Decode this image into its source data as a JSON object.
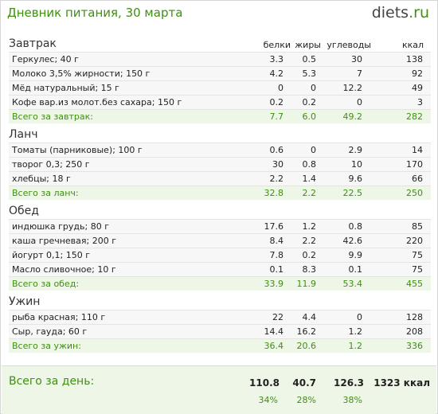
{
  "header": {
    "title": "Дневник питания, 30 марта",
    "logo_main": "diets",
    "logo_tld": ".ru"
  },
  "columns": {
    "protein": "белки",
    "fat": "жиры",
    "carbs": "углеводы",
    "kcal": "ккал"
  },
  "meals": [
    {
      "name": "Завтрак",
      "items": [
        {
          "name": "Геркулес; 40 г",
          "protein": "3.3",
          "fat": "0.5",
          "carbs": "30",
          "kcal": "138"
        },
        {
          "name": "Молоко 3,5% жирности; 150 г",
          "protein": "4.2",
          "fat": "5.3",
          "carbs": "7",
          "kcal": "92"
        },
        {
          "name": "Мёд натуральный; 15 г",
          "protein": "0",
          "fat": "0",
          "carbs": "12.2",
          "kcal": "49"
        },
        {
          "name": "Кофе вар.из молот.без сахара; 150 г",
          "protein": "0.2",
          "fat": "0.2",
          "carbs": "0",
          "kcal": "3"
        }
      ],
      "total": {
        "name": "Всего за завтрак:",
        "protein": "7.7",
        "fat": "6.0",
        "carbs": "49.2",
        "kcal": "282"
      }
    },
    {
      "name": "Ланч",
      "items": [
        {
          "name": "Томаты (парниковые); 100 г",
          "protein": "0.6",
          "fat": "0",
          "carbs": "2.9",
          "kcal": "14"
        },
        {
          "name": "творог 0,3; 250 г",
          "protein": "30",
          "fat": "0.8",
          "carbs": "10",
          "kcal": "170"
        },
        {
          "name": "хлебцы; 18 г",
          "protein": "2.2",
          "fat": "1.4",
          "carbs": "9.6",
          "kcal": "66"
        }
      ],
      "total": {
        "name": "Всего за ланч:",
        "protein": "32.8",
        "fat": "2.2",
        "carbs": "22.5",
        "kcal": "250"
      }
    },
    {
      "name": "Обед",
      "items": [
        {
          "name": "индюшка грудь; 80 г",
          "protein": "17.6",
          "fat": "1.2",
          "carbs": "0.8",
          "kcal": "85"
        },
        {
          "name": "каша гречневая; 200 г",
          "protein": "8.4",
          "fat": "2.2",
          "carbs": "42.6",
          "kcal": "220"
        },
        {
          "name": "йогурт 0,1; 150 г",
          "protein": "7.8",
          "fat": "0.2",
          "carbs": "9.9",
          "kcal": "75"
        },
        {
          "name": "Масло сливочное; 10 г",
          "protein": "0.1",
          "fat": "8.3",
          "carbs": "0.1",
          "kcal": "75"
        }
      ],
      "total": {
        "name": "Всего за обед:",
        "protein": "33.9",
        "fat": "11.9",
        "carbs": "53.4",
        "kcal": "455"
      }
    },
    {
      "name": "Ужин",
      "items": [
        {
          "name": "рыба красная; 110 г",
          "protein": "22",
          "fat": "4.4",
          "carbs": "0",
          "kcal": "128"
        },
        {
          "name": "Сыр, гауда; 60 г",
          "protein": "14.4",
          "fat": "16.2",
          "carbs": "1.2",
          "kcal": "208"
        }
      ],
      "total": {
        "name": "Всего за ужин:",
        "protein": "36.4",
        "fat": "20.6",
        "carbs": "1.2",
        "kcal": "336"
      }
    }
  ],
  "day": {
    "label": "Всего за день:",
    "protein": "110.8",
    "fat": "40.7",
    "carbs": "126.3",
    "kcal": "1323 ккал",
    "protein_pct": "34%",
    "fat_pct": "28%",
    "carbs_pct": "38%"
  },
  "colors": {
    "accent": "#3f8f12",
    "total_bg": "#eef6e8",
    "row_bg": "#f7f7f7"
  }
}
